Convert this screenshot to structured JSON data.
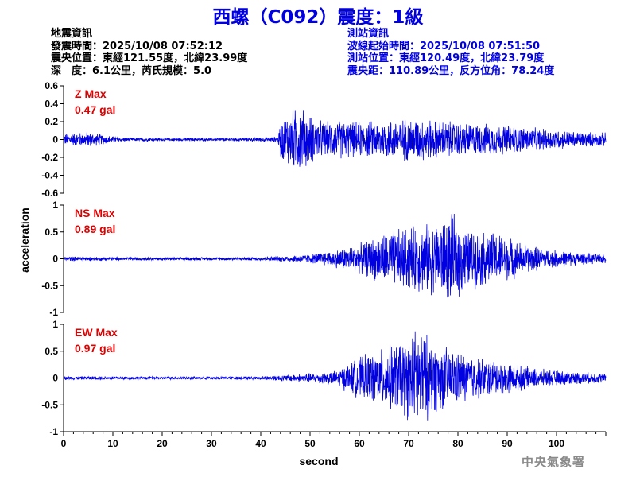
{
  "title": "西螺（C092）震度：1級",
  "event_info": {
    "heading": "地震資訊",
    "origin_time": "發震時間：2025/10/08 07:52:12",
    "epicenter": "震央位置：東經121.55度，北緯23.99度",
    "depth_magnitude": "深　度：6.1公里，芮氏規模：5.0"
  },
  "station_info": {
    "heading": "測站資訊",
    "wave_start": "波線起始時間：2025/10/08 07:51:50",
    "location": "測站位置：東經120.49度，北緯23.79度",
    "distance": "震央距：110.89公里，反方位角：78.24度"
  },
  "footer": "中央氣象署",
  "colors": {
    "trace": "#0000e0",
    "max_label": "#e00000",
    "title": "#0000e0",
    "station_text": "#0000e0",
    "footer": "#8a8a8a"
  },
  "chart_data": {
    "type": "line",
    "xlabel": "second",
    "ylabel": "acceleration",
    "xlim": [
      0,
      110
    ],
    "x_ticks": [
      0,
      10,
      20,
      30,
      40,
      50,
      60,
      70,
      80,
      90,
      100
    ],
    "grid": false,
    "panels": [
      {
        "component": "Z",
        "max_label": "Z Max",
        "max_value": "0.47 gal",
        "ylim": [
          -0.6,
          0.6
        ],
        "y_ticks": [
          -0.6,
          -0.4,
          -0.2,
          0,
          0.2,
          0.4,
          0.6
        ],
        "envelope": [
          [
            0,
            0.06
          ],
          [
            5,
            0.08
          ],
          [
            8,
            0.05
          ],
          [
            12,
            0.02
          ],
          [
            20,
            0.015
          ],
          [
            30,
            0.015
          ],
          [
            40,
            0.02
          ],
          [
            43.5,
            0.03
          ],
          [
            44,
            0.2
          ],
          [
            46,
            0.3
          ],
          [
            48,
            0.35
          ],
          [
            50,
            0.25
          ],
          [
            53,
            0.18
          ],
          [
            56,
            0.2
          ],
          [
            60,
            0.18
          ],
          [
            65,
            0.2
          ],
          [
            70,
            0.22
          ],
          [
            73,
            0.22
          ],
          [
            76,
            0.2
          ],
          [
            80,
            0.18
          ],
          [
            85,
            0.16
          ],
          [
            90,
            0.15
          ],
          [
            95,
            0.12
          ],
          [
            100,
            0.1
          ],
          [
            105,
            0.08
          ],
          [
            110,
            0.07
          ]
        ]
      },
      {
        "component": "NS",
        "max_label": "NS Max",
        "max_value": "0.89 gal",
        "ylim": [
          -1,
          1
        ],
        "y_ticks": [
          -1,
          -0.5,
          0,
          0.5,
          1
        ],
        "envelope": [
          [
            0,
            0.04
          ],
          [
            10,
            0.03
          ],
          [
            20,
            0.025
          ],
          [
            30,
            0.025
          ],
          [
            40,
            0.03
          ],
          [
            45,
            0.05
          ],
          [
            50,
            0.08
          ],
          [
            55,
            0.15
          ],
          [
            60,
            0.25
          ],
          [
            65,
            0.45
          ],
          [
            70,
            0.55
          ],
          [
            75,
            0.6
          ],
          [
            79,
            0.75
          ],
          [
            82,
            0.5
          ],
          [
            88,
            0.45
          ],
          [
            92,
            0.3
          ],
          [
            97,
            0.18
          ],
          [
            105,
            0.1
          ],
          [
            110,
            0.08
          ]
        ]
      },
      {
        "component": "EW",
        "max_label": "EW Max",
        "max_value": "0.97 gal",
        "ylim": [
          -1,
          1
        ],
        "y_ticks": [
          -1,
          -0.5,
          0,
          0.5,
          1
        ],
        "envelope": [
          [
            0,
            0.03
          ],
          [
            10,
            0.03
          ],
          [
            20,
            0.025
          ],
          [
            30,
            0.025
          ],
          [
            40,
            0.03
          ],
          [
            48,
            0.07
          ],
          [
            55,
            0.12
          ],
          [
            60,
            0.35
          ],
          [
            65,
            0.5
          ],
          [
            70,
            0.7
          ],
          [
            72,
            0.9
          ],
          [
            75,
            0.6
          ],
          [
            80,
            0.45
          ],
          [
            85,
            0.35
          ],
          [
            90,
            0.25
          ],
          [
            97,
            0.15
          ],
          [
            105,
            0.1
          ],
          [
            110,
            0.08
          ]
        ]
      }
    ]
  }
}
